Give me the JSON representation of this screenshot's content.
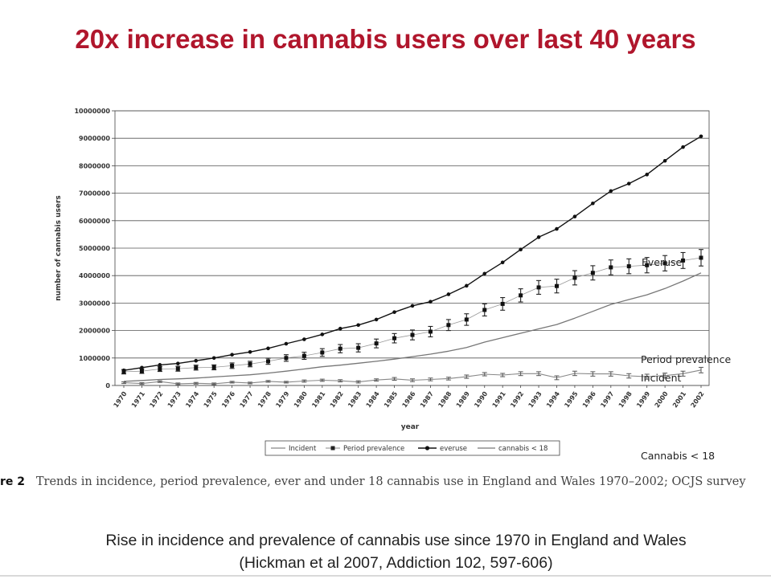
{
  "slide": {
    "title": "20x increase in cannabis users over last 40 years",
    "caption_label": "re 2",
    "caption_text": "Trends in incidence, period prevalence, ever and under 18 cannabis use in England and Wales 1970–2002; OCJS survey",
    "footer_line1": "Rise in incidence and prevalence of cannabis use since 1970 in England and Wales",
    "footer_line2": "(Hickman et al 2007, Addiction 102, 597-606)"
  },
  "overlay_labels": {
    "everuse": "Everuse",
    "period_prevalence": "Period prevalence",
    "incident": "Incident",
    "cannabis_under_18": "Cannabis < 18"
  },
  "chart_data": {
    "type": "line",
    "title": "",
    "xlabel": "year",
    "ylabel": "number of cannabis users",
    "ylim": [
      0,
      10000000
    ],
    "yticks": [
      0,
      1000000,
      2000000,
      3000000,
      4000000,
      5000000,
      6000000,
      7000000,
      8000000,
      9000000,
      10000000
    ],
    "ytick_labels": [
      "0",
      "1000000",
      "2000000",
      "3000000",
      "4000000",
      "5000000",
      "6000000",
      "7000000",
      "8000000",
      "9000000",
      "10000000"
    ],
    "grid": true,
    "legend_position": "bottom",
    "categories": [
      "1970",
      "1971",
      "1972",
      "1973",
      "1974",
      "1975",
      "1976",
      "1977",
      "1978",
      "1979",
      "1980",
      "1981",
      "1982",
      "1983",
      "1984",
      "1985",
      "1986",
      "1987",
      "1988",
      "1989",
      "1990",
      "1991",
      "1992",
      "1993",
      "1994",
      "1995",
      "1996",
      "1997",
      "1998",
      "1999",
      "2000",
      "2001",
      "2002"
    ],
    "series": [
      {
        "name": "Incident",
        "color": "#888888",
        "values": [
          100000,
          70000,
          140000,
          60000,
          80000,
          60000,
          120000,
          90000,
          150000,
          120000,
          160000,
          190000,
          170000,
          130000,
          200000,
          240000,
          190000,
          220000,
          250000,
          320000,
          410000,
          380000,
          430000,
          430000,
          280000,
          440000,
          420000,
          420000,
          350000,
          320000,
          360000,
          430000,
          560000
        ],
        "error": [
          30000,
          30000,
          30000,
          30000,
          30000,
          30000,
          30000,
          30000,
          30000,
          30000,
          40000,
          40000,
          40000,
          40000,
          40000,
          50000,
          50000,
          50000,
          50000,
          60000,
          60000,
          60000,
          70000,
          70000,
          70000,
          80000,
          80000,
          80000,
          80000,
          90000,
          90000,
          90000,
          100000
        ]
      },
      {
        "name": "Period prevalence",
        "color": "#111111",
        "values": [
          500000,
          520000,
          600000,
          610000,
          650000,
          660000,
          720000,
          780000,
          880000,
          1000000,
          1080000,
          1200000,
          1340000,
          1370000,
          1530000,
          1720000,
          1840000,
          1960000,
          2200000,
          2400000,
          2750000,
          2970000,
          3280000,
          3570000,
          3620000,
          3920000,
          4100000,
          4300000,
          4340000,
          4380000,
          4450000,
          4550000,
          4650000
        ],
        "error": [
          80000,
          80000,
          90000,
          90000,
          90000,
          90000,
          100000,
          100000,
          110000,
          120000,
          130000,
          140000,
          150000,
          150000,
          160000,
          170000,
          180000,
          190000,
          200000,
          210000,
          220000,
          230000,
          240000,
          250000,
          250000,
          260000,
          260000,
          270000,
          270000,
          280000,
          280000,
          290000,
          300000
        ]
      },
      {
        "name": "everuse",
        "color": "#111111",
        "values": [
          550000,
          650000,
          750000,
          800000,
          900000,
          1000000,
          1120000,
          1220000,
          1350000,
          1520000,
          1680000,
          1860000,
          2070000,
          2200000,
          2400000,
          2670000,
          2900000,
          3050000,
          3320000,
          3630000,
          4070000,
          4480000,
          4950000,
          5400000,
          5700000,
          6150000,
          6630000,
          7080000,
          7350000,
          7680000,
          8180000,
          8680000,
          9070000
        ]
      },
      {
        "name": "cannabis < 18",
        "color": "#777777",
        "values": [
          150000,
          180000,
          220000,
          240000,
          270000,
          310000,
          350000,
          390000,
          450000,
          520000,
          600000,
          680000,
          740000,
          810000,
          880000,
          960000,
          1050000,
          1140000,
          1250000,
          1380000,
          1580000,
          1740000,
          1900000,
          2060000,
          2220000,
          2450000,
          2700000,
          2950000,
          3130000,
          3300000,
          3530000,
          3800000,
          4100000
        ]
      }
    ]
  }
}
